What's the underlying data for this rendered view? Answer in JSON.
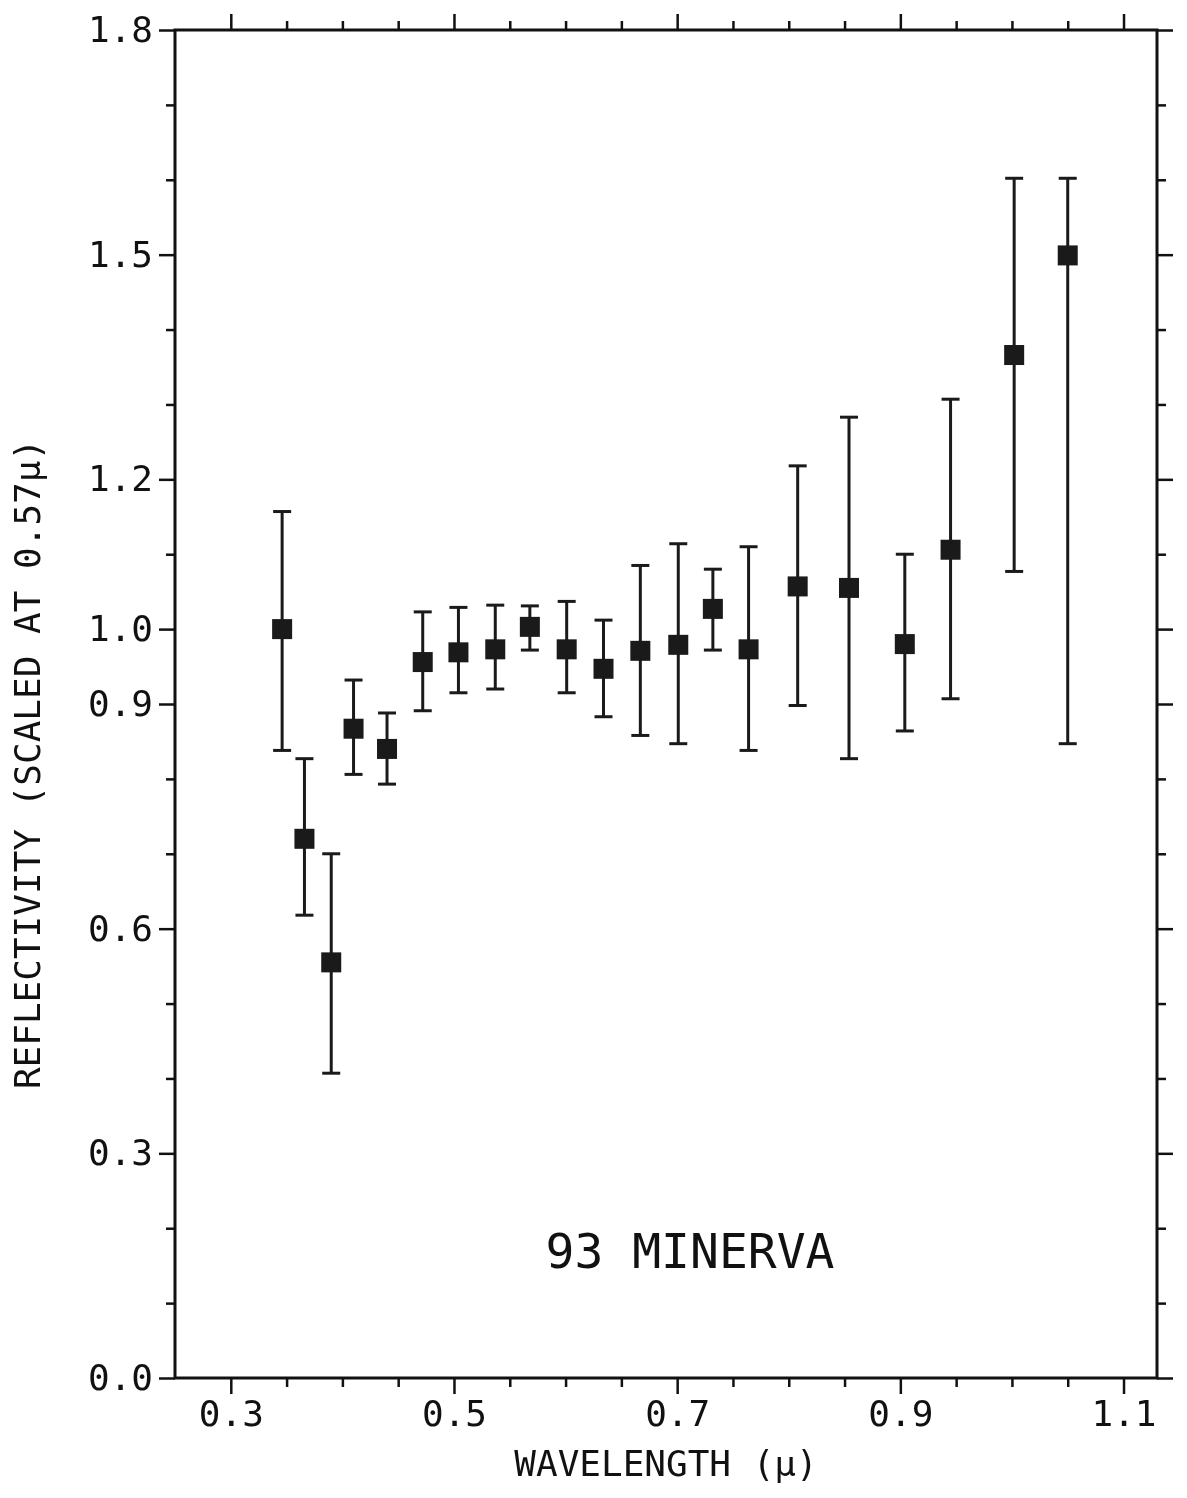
{
  "chart_data": {
    "type": "scatter",
    "xlabel": "WAVELENGTH (μ)",
    "ylabel": "REFLECTIVITY (SCALED AT 0.57μ)",
    "annotations": [
      "93 MINERVA"
    ],
    "x": [
      0.346,
      0.366,
      0.39,
      0.41,
      0.44,
      0.472,
      0.504,
      0.537,
      0.568,
      0.601,
      0.634,
      0.667,
      0.701,
      0.732,
      0.764,
      0.808,
      0.854,
      0.904,
      0.945,
      1.002,
      1.05
    ],
    "values": [
      1.0,
      0.72,
      0.555,
      0.867,
      0.84,
      0.956,
      0.969,
      0.973,
      1.003,
      0.973,
      0.947,
      0.971,
      0.979,
      1.027,
      0.973,
      1.057,
      1.055,
      0.98,
      1.106,
      1.366,
      1.499
    ],
    "errors": [
      [
        0.838,
        1.157
      ],
      [
        0.618,
        0.827
      ],
      [
        0.407,
        0.7
      ],
      [
        0.806,
        0.932
      ],
      [
        0.793,
        0.888
      ],
      [
        0.891,
        1.023
      ],
      [
        0.915,
        1.029
      ],
      [
        0.92,
        1.032
      ],
      [
        0.972,
        1.031
      ],
      [
        0.915,
        1.037
      ],
      [
        0.883,
        1.012
      ],
      [
        0.858,
        1.085
      ],
      [
        0.847,
        1.114
      ],
      [
        0.972,
        1.08
      ],
      [
        0.838,
        1.11
      ],
      [
        0.898,
        1.218
      ],
      [
        0.827,
        1.283
      ],
      [
        0.864,
        1.1
      ],
      [
        0.907,
        1.307
      ],
      [
        1.077,
        1.602
      ],
      [
        0.847,
        1.602
      ]
    ],
    "color": "#1a1a1a",
    "marker": "square",
    "xlim": [
      0.25,
      1.13
    ],
    "xticks": [
      0.3,
      {
        "value": 0.35,
        "label": null
      },
      {
        "value": 0.4,
        "label": null
      },
      {
        "value": 0.45,
        "label": null
      },
      0.5,
      {
        "value": 0.55,
        "label": null
      },
      {
        "value": 0.6,
        "label": null
      },
      {
        "value": 0.65,
        "label": null
      },
      0.7,
      {
        "value": 0.75,
        "label": null
      },
      {
        "value": 0.8,
        "label": null
      },
      {
        "value": 0.85,
        "label": null
      },
      0.9,
      {
        "value": 0.95,
        "label": null
      },
      {
        "value": 1.0,
        "label": null
      },
      {
        "value": 1.05,
        "label": null
      },
      1.1
    ],
    "ylim": [
      0,
      1.8
    ],
    "yticks": [
      {
        "value": 0,
        "label": "0.0"
      },
      {
        "value": 0.1,
        "label": null
      },
      {
        "value": 0.2,
        "label": null
      },
      0.3,
      {
        "value": 0.4,
        "label": null
      },
      {
        "value": 0.5,
        "label": null
      },
      0.6,
      {
        "value": 0.7,
        "label": null
      },
      {
        "value": 0.8,
        "label": null
      },
      0.9,
      {
        "value": 1.0,
        "label": "1.0"
      },
      {
        "value": 1.1,
        "label": null
      },
      1.2,
      {
        "value": 1.3,
        "label": null
      },
      {
        "value": 1.4,
        "label": null
      },
      1.5,
      {
        "value": 1.6,
        "label": null
      },
      {
        "value": 1.7,
        "label": null
      },
      1.8
    ],
    "grid": false
  }
}
